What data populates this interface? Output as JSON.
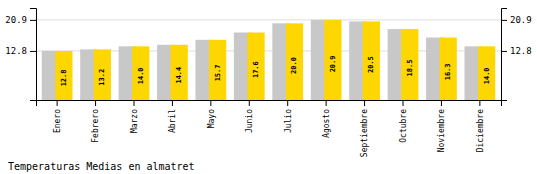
{
  "chart_data": {
    "type": "bar",
    "title": "Temperaturas Medias en almatret",
    "categories": [
      "Enero",
      "Febrero",
      "Marzo",
      "Abril",
      "Mayo",
      "Junio",
      "Julio",
      "Agosto",
      "Septiembre",
      "Octubre",
      "Noviembre",
      "Diciembre"
    ],
    "values": [
      12.8,
      13.2,
      14.0,
      14.4,
      15.7,
      17.6,
      20.0,
      20.9,
      20.5,
      18.5,
      16.3,
      14.0
    ],
    "value_labels": [
      "12.8",
      "13.2",
      "14.0",
      "14.4",
      "15.7",
      "17.6",
      "20.0",
      "20.9",
      "20.5",
      "18.5",
      "16.3",
      "14.0"
    ],
    "data_labels": true,
    "color": "#FFD700",
    "ylim": [
      0.0,
      24.0
    ],
    "yticks": [
      12.8,
      20.9
    ],
    "y2lim": [
      0.0,
      24.0
    ],
    "y2ticks": [
      12.8,
      20.9
    ],
    "grid": true
  }
}
